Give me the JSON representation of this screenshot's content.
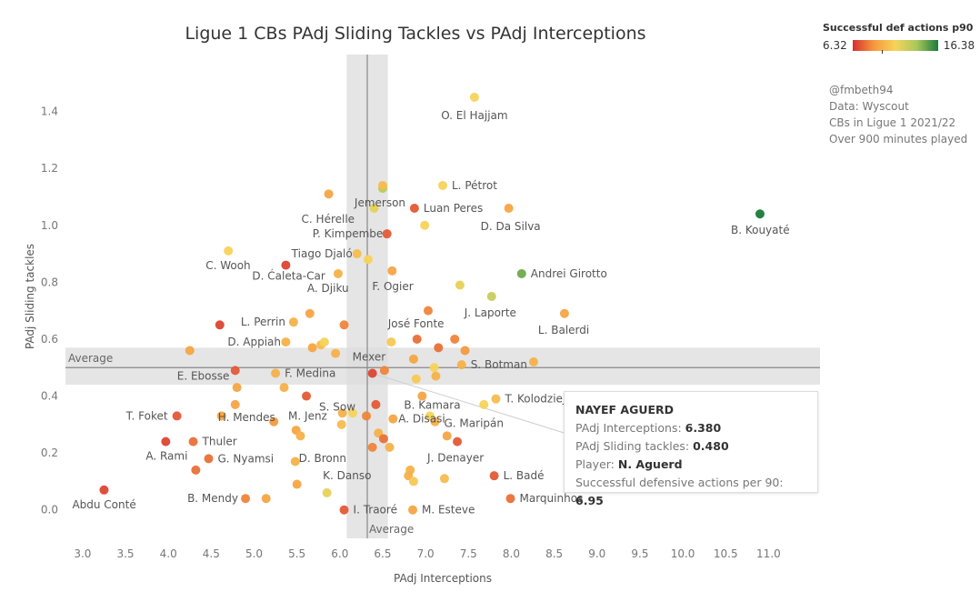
{
  "header": {
    "title": "Ligue 1 CBs PAdj Sliding Tackles vs PAdj Interceptions"
  },
  "legend": {
    "title": "Successful def actions p90",
    "min": "6.32",
    "max": "16.38"
  },
  "notes": [
    "@fmbeth94",
    "Data: Wyscout",
    "CBs in Ligue 1 2021/22",
    "Over 900 minutes played"
  ],
  "tooltip": {
    "name": "NAYEF AGUERD",
    "rows": [
      {
        "label": "PAdj Interceptions: ",
        "value": "6.380"
      },
      {
        "label": "PAdj Sliding tackles: ",
        "value": "0.480"
      },
      {
        "label": "Player: ",
        "value": "N. Aguerd"
      },
      {
        "label": "Successful defensive actions per 90: ",
        "value": "6.95"
      }
    ]
  },
  "colors": {
    "low": "#d7302f",
    "mid_low": "#f59a3d",
    "mid": "#f7d35a",
    "mid_high": "#a7c85a",
    "high": "#1a7a3a"
  },
  "chart_data": {
    "type": "scatter",
    "title": "Ligue 1 CBs PAdj Sliding Tackles vs PAdj Interceptions",
    "xlabel": "PAdj Interceptions",
    "ylabel": "PAdj Sliding tackles",
    "xlim": [
      2.8,
      11.6
    ],
    "ylim": [
      -0.1,
      1.6
    ],
    "xticks": [
      "3.0",
      "3.5",
      "4.0",
      "4.5",
      "5.0",
      "5.5",
      "6.0",
      "6.5",
      "7.0",
      "7.5",
      "8.0",
      "8.5",
      "9.0",
      "9.5",
      "10.0",
      "10.5",
      "11.0"
    ],
    "yticks": [
      "0.0",
      "0.2",
      "0.4",
      "0.6",
      "0.8",
      "1.0",
      "1.2",
      "1.4"
    ],
    "color_metric": "Successful def actions p90",
    "grid": false,
    "reference_lines": [
      {
        "axis": "x",
        "value": 6.32,
        "label": "Average"
      },
      {
        "axis": "y",
        "value": 0.5,
        "label": "Average"
      }
    ],
    "bands": [
      {
        "axis": "x",
        "from": 6.08,
        "to": 6.56
      },
      {
        "axis": "y",
        "from": 0.44,
        "to": 0.57
      }
    ],
    "points": [
      {
        "x": 7.57,
        "y": 1.45,
        "label": "O. El Hajjam",
        "c": 0.5
      },
      {
        "x": 6.5,
        "y": 1.13,
        "label": "Jemerson",
        "c": 0.7
      },
      {
        "x": 6.5,
        "y": 1.14,
        "label": "",
        "c": 0.4
      },
      {
        "x": 7.2,
        "y": 1.14,
        "label": "L. Pétrot",
        "c": 0.5
      },
      {
        "x": 5.87,
        "y": 1.11,
        "label": "",
        "c": 0.3
      },
      {
        "x": 6.4,
        "y": 1.06,
        "label": "C. Hérelle",
        "c": 0.55
      },
      {
        "x": 6.87,
        "y": 1.06,
        "label": "Luan Peres",
        "c": 0.1
      },
      {
        "x": 7.97,
        "y": 1.06,
        "label": "D. Da Silva",
        "c": 0.3
      },
      {
        "x": 10.9,
        "y": 1.04,
        "label": "B. Kouyaté",
        "c": 1.0
      },
      {
        "x": 6.99,
        "y": 1.0,
        "label": "",
        "c": 0.5
      },
      {
        "x": 6.55,
        "y": 0.97,
        "label": "P. Kimpembe",
        "c": 0.1
      },
      {
        "x": 4.7,
        "y": 0.91,
        "label": "C. Wooh",
        "c": 0.5
      },
      {
        "x": 6.2,
        "y": 0.9,
        "label": "Tiago Djaló",
        "c": 0.4
      },
      {
        "x": 6.33,
        "y": 0.88,
        "label": "",
        "c": 0.5
      },
      {
        "x": 5.37,
        "y": 0.86,
        "label": "D. Ćaleta-Car",
        "c": 0.05
      },
      {
        "x": 5.98,
        "y": 0.83,
        "label": "A. Djiku",
        "c": 0.35
      },
      {
        "x": 6.61,
        "y": 0.84,
        "label": "F. Ogier",
        "c": 0.3
      },
      {
        "x": 8.12,
        "y": 0.83,
        "label": "Andrei Girotto",
        "c": 0.85
      },
      {
        "x": 7.4,
        "y": 0.79,
        "label": "",
        "c": 0.55
      },
      {
        "x": 7.77,
        "y": 0.75,
        "label": "J. Laporte",
        "c": 0.65
      },
      {
        "x": 7.03,
        "y": 0.7,
        "label": "",
        "c": 0.2
      },
      {
        "x": 5.65,
        "y": 0.69,
        "label": "",
        "c": 0.3
      },
      {
        "x": 8.62,
        "y": 0.69,
        "label": "L. Balerdi",
        "c": 0.3
      },
      {
        "x": 4.6,
        "y": 0.65,
        "label": "",
        "c": 0.05
      },
      {
        "x": 5.46,
        "y": 0.66,
        "label": "L. Perrin",
        "c": 0.35
      },
      {
        "x": 6.05,
        "y": 0.65,
        "label": "",
        "c": 0.2
      },
      {
        "x": 6.9,
        "y": 0.6,
        "label": "José Fonte",
        "c": 0.15
      },
      {
        "x": 7.34,
        "y": 0.6,
        "label": "",
        "c": 0.2
      },
      {
        "x": 5.37,
        "y": 0.59,
        "label": "D. Appiah",
        "c": 0.35
      },
      {
        "x": 5.78,
        "y": 0.58,
        "label": "",
        "c": 0.4
      },
      {
        "x": 5.82,
        "y": 0.59,
        "label": "",
        "c": 0.5
      },
      {
        "x": 6.6,
        "y": 0.59,
        "label": "",
        "c": 0.45
      },
      {
        "x": 4.25,
        "y": 0.56,
        "label": "",
        "c": 0.3
      },
      {
        "x": 5.68,
        "y": 0.57,
        "label": "",
        "c": 0.3
      },
      {
        "x": 7.15,
        "y": 0.57,
        "label": "",
        "c": 0.15
      },
      {
        "x": 7.46,
        "y": 0.56,
        "label": "",
        "c": 0.25
      },
      {
        "x": 5.95,
        "y": 0.55,
        "label": "",
        "c": 0.35
      },
      {
        "x": 6.86,
        "y": 0.53,
        "label": "",
        "c": 0.3
      },
      {
        "x": 8.26,
        "y": 0.52,
        "label": "",
        "c": 0.35
      },
      {
        "x": 7.42,
        "y": 0.51,
        "label": "S. Botman",
        "c": 0.35
      },
      {
        "x": 4.78,
        "y": 0.49,
        "label": "E. Ebosse",
        "c": 0.1
      },
      {
        "x": 6.38,
        "y": 0.48,
        "label": "Mexer",
        "c": 0.05
      },
      {
        "x": 6.52,
        "y": 0.49,
        "label": "",
        "c": 0.2
      },
      {
        "x": 7.1,
        "y": 0.5,
        "label": "",
        "c": 0.5
      },
      {
        "x": 5.25,
        "y": 0.48,
        "label": "F. Medina",
        "c": 0.35
      },
      {
        "x": 6.89,
        "y": 0.46,
        "label": "",
        "c": 0.45
      },
      {
        "x": 7.12,
        "y": 0.47,
        "label": "",
        "c": 0.35
      },
      {
        "x": 4.8,
        "y": 0.43,
        "label": "",
        "c": 0.3
      },
      {
        "x": 5.35,
        "y": 0.43,
        "label": "",
        "c": 0.35
      },
      {
        "x": 5.61,
        "y": 0.4,
        "label": "S. Sow",
        "c": 0.1
      },
      {
        "x": 6.96,
        "y": 0.4,
        "label": "B. Kamara",
        "c": 0.3
      },
      {
        "x": 7.82,
        "y": 0.39,
        "label": "T. Kolodziejczak",
        "c": 0.4
      },
      {
        "x": 7.68,
        "y": 0.37,
        "label": "",
        "c": 0.5
      },
      {
        "x": 4.78,
        "y": 0.37,
        "label": "H. Mendes",
        "c": 0.3
      },
      {
        "x": 6.42,
        "y": 0.37,
        "label": "",
        "c": 0.1
      },
      {
        "x": 4.1,
        "y": 0.33,
        "label": "T. Foket",
        "c": 0.1
      },
      {
        "x": 4.62,
        "y": 0.33,
        "label": "",
        "c": 0.3
      },
      {
        "x": 6.31,
        "y": 0.33,
        "label": "M. Jenz",
        "c": 0.2
      },
      {
        "x": 6.03,
        "y": 0.34,
        "label": "",
        "c": 0.35
      },
      {
        "x": 6.15,
        "y": 0.34,
        "label": "",
        "c": 0.5
      },
      {
        "x": 7.05,
        "y": 0.33,
        "label": "",
        "c": 0.5
      },
      {
        "x": 7.11,
        "y": 0.31,
        "label": "G. Maripán",
        "c": 0.35
      },
      {
        "x": 5.23,
        "y": 0.31,
        "label": "",
        "c": 0.25
      },
      {
        "x": 6.02,
        "y": 0.3,
        "label": "",
        "c": 0.4
      },
      {
        "x": 6.62,
        "y": 0.32,
        "label": "A. Disasi",
        "c": 0.3
      },
      {
        "x": 5.49,
        "y": 0.28,
        "label": "",
        "c": 0.3
      },
      {
        "x": 5.54,
        "y": 0.26,
        "label": "",
        "c": 0.35
      },
      {
        "x": 6.45,
        "y": 0.27,
        "label": "",
        "c": 0.35
      },
      {
        "x": 6.51,
        "y": 0.25,
        "label": "",
        "c": 0.15
      },
      {
        "x": 7.25,
        "y": 0.26,
        "label": "",
        "c": 0.3
      },
      {
        "x": 7.37,
        "y": 0.24,
        "label": "J. Denayer",
        "c": 0.1
      },
      {
        "x": 3.97,
        "y": 0.24,
        "label": "A. Rami",
        "c": 0.05
      },
      {
        "x": 4.29,
        "y": 0.24,
        "label": "Thuler",
        "c": 0.15
      },
      {
        "x": 6.38,
        "y": 0.22,
        "label": "D. Bronn",
        "c": 0.2
      },
      {
        "x": 6.58,
        "y": 0.22,
        "label": "",
        "c": 0.35
      },
      {
        "x": 4.47,
        "y": 0.18,
        "label": "G. Nyamsi",
        "c": 0.15
      },
      {
        "x": 5.48,
        "y": 0.17,
        "label": "",
        "c": 0.35
      },
      {
        "x": 4.32,
        "y": 0.14,
        "label": "",
        "c": 0.15
      },
      {
        "x": 6.82,
        "y": 0.14,
        "label": "K. Danso",
        "c": 0.35
      },
      {
        "x": 6.8,
        "y": 0.12,
        "label": "",
        "c": 0.35
      },
      {
        "x": 7.22,
        "y": 0.11,
        "label": "",
        "c": 0.4
      },
      {
        "x": 7.8,
        "y": 0.12,
        "label": "L. Badé",
        "c": 0.1
      },
      {
        "x": 6.86,
        "y": 0.1,
        "label": "",
        "c": 0.45
      },
      {
        "x": 5.5,
        "y": 0.09,
        "label": "",
        "c": 0.3
      },
      {
        "x": 3.25,
        "y": 0.07,
        "label": "Abdu Conté",
        "c": 0.05
      },
      {
        "x": 5.85,
        "y": 0.06,
        "label": "",
        "c": 0.55
      },
      {
        "x": 4.9,
        "y": 0.04,
        "label": "B. Mendy",
        "c": 0.2
      },
      {
        "x": 5.14,
        "y": 0.04,
        "label": "",
        "c": 0.3
      },
      {
        "x": 7.99,
        "y": 0.04,
        "label": "Marquinhos",
        "c": 0.15
      },
      {
        "x": 6.05,
        "y": 0.0,
        "label": "I. Traoré",
        "c": 0.1
      },
      {
        "x": 6.85,
        "y": 0.0,
        "label": "M. Esteve",
        "c": 0.3
      }
    ]
  }
}
